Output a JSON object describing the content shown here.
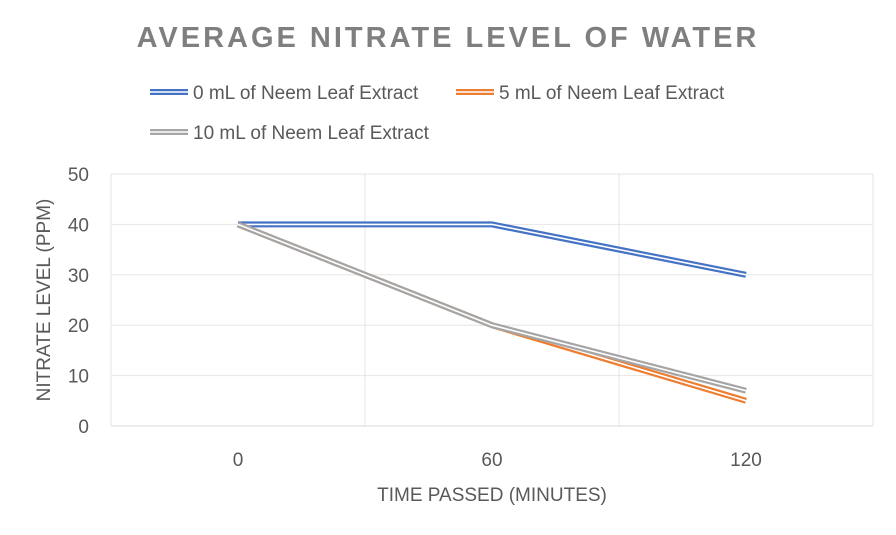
{
  "chart_data": {
    "type": "line",
    "title": "AVERAGE NITRATE LEVEL OF WATER",
    "xlabel": "TIME PASSED (MINUTES)",
    "ylabel": "NITRATE LEVEL (PPM)",
    "categories": [
      "0",
      "60",
      "120"
    ],
    "x": [
      0,
      60,
      120
    ],
    "xlim": [
      -30,
      150
    ],
    "ylim": [
      0,
      50
    ],
    "yticks": [
      0,
      10,
      20,
      30,
      40,
      50
    ],
    "grid": true,
    "legend_position": "top",
    "series": [
      {
        "name": "0 mL of Neem Leaf Extract",
        "values": [
          40,
          40,
          30
        ],
        "color": "#4472c4"
      },
      {
        "name": "5 mL of Neem Leaf Extract",
        "values": [
          40,
          20,
          5
        ],
        "color": "#ed7d31"
      },
      {
        "name": "10 mL of Neem Leaf Extract",
        "values": [
          40,
          20,
          7
        ],
        "color": "#a5a5a5"
      }
    ]
  }
}
